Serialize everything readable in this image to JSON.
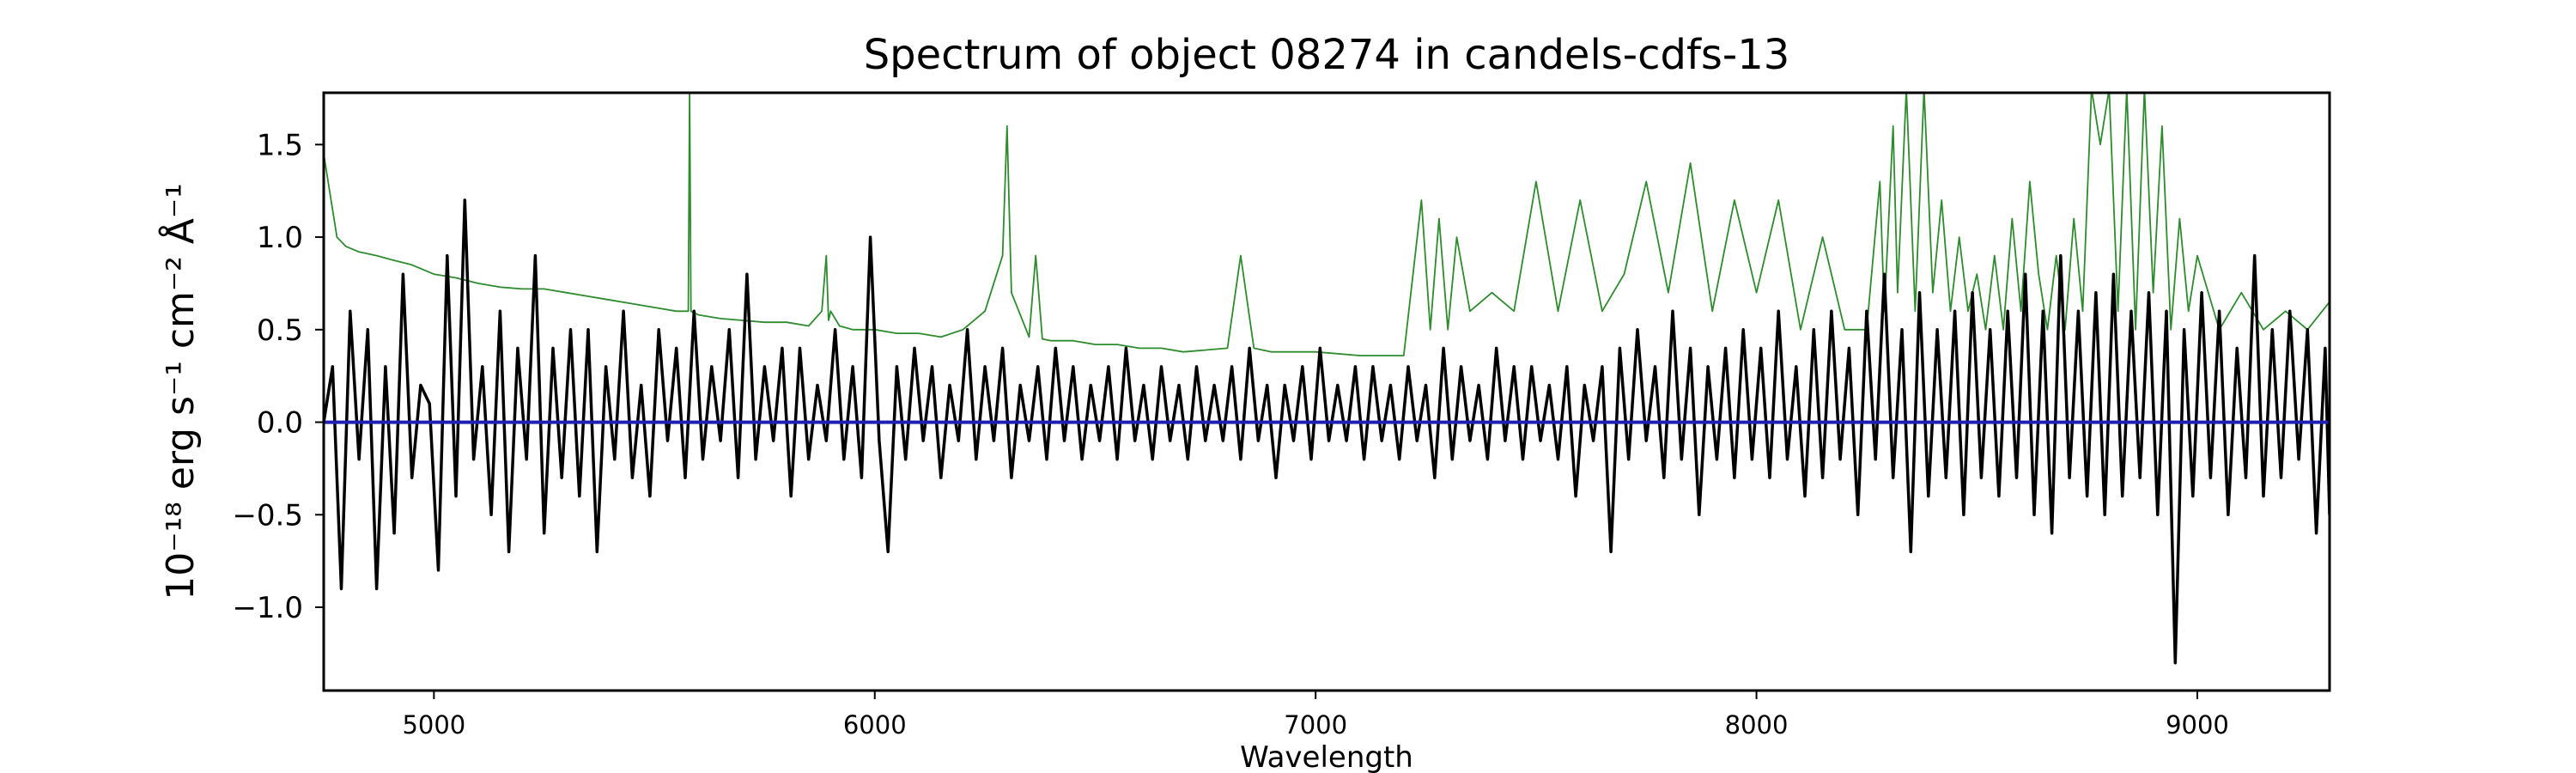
{
  "chart_data": {
    "type": "line",
    "title": "Spectrum of object 08274 in candels-cdfs-13",
    "xlabel": "Wavelength",
    "ylabel": "10⁻¹⁸ erg s⁻¹ cm⁻² Å⁻¹",
    "xlim": [
      4750,
      9300
    ],
    "ylim": [
      -1.45,
      1.78
    ],
    "xticks": [
      5000,
      6000,
      7000,
      8000,
      9000
    ],
    "xtick_labels": [
      "5000",
      "6000",
      "7000",
      "8000",
      "9000"
    ],
    "yticks": [
      1.5,
      1.0,
      0.5,
      0.0,
      -0.5,
      -1.0
    ],
    "ytick_labels": [
      "1.5",
      "1.0",
      "0.5",
      "0.0",
      "−0.5",
      "−1.0"
    ],
    "grid": false,
    "series": [
      {
        "color": "#000000",
        "x": [
          4750,
          4770,
          4790,
          4810,
          4830,
          4850,
          4870,
          4890,
          4910,
          4930,
          4950,
          4970,
          4990,
          5010,
          5030,
          5050,
          5070,
          5090,
          5110,
          5130,
          5150,
          5170,
          5190,
          5210,
          5230,
          5250,
          5270,
          5290,
          5310,
          5330,
          5350,
          5370,
          5390,
          5410,
          5430,
          5450,
          5470,
          5490,
          5510,
          5530,
          5550,
          5570,
          5590,
          5610,
          5630,
          5650,
          5670,
          5690,
          5710,
          5730,
          5750,
          5770,
          5790,
          5810,
          5830,
          5850,
          5870,
          5890,
          5910,
          5930,
          5950,
          5970,
          5990,
          6010,
          6030,
          6050,
          6070,
          6090,
          6110,
          6130,
          6150,
          6170,
          6190,
          6210,
          6230,
          6250,
          6270,
          6290,
          6310,
          6330,
          6350,
          6370,
          6390,
          6410,
          6430,
          6450,
          6470,
          6490,
          6510,
          6530,
          6550,
          6570,
          6590,
          6610,
          6630,
          6650,
          6670,
          6690,
          6710,
          6730,
          6750,
          6770,
          6790,
          6810,
          6830,
          6850,
          6870,
          6890,
          6910,
          6930,
          6950,
          6970,
          6990,
          7010,
          7030,
          7050,
          7070,
          7090,
          7110,
          7130,
          7150,
          7170,
          7190,
          7210,
          7230,
          7250,
          7270,
          7290,
          7310,
          7330,
          7350,
          7370,
          7390,
          7410,
          7430,
          7450,
          7470,
          7490,
          7510,
          7530,
          7550,
          7570,
          7590,
          7610,
          7630,
          7650,
          7670,
          7690,
          7710,
          7730,
          7750,
          7770,
          7790,
          7810,
          7830,
          7850,
          7870,
          7890,
          7910,
          7930,
          7950,
          7970,
          7990,
          8010,
          8030,
          8050,
          8070,
          8090,
          8110,
          8130,
          8150,
          8170,
          8190,
          8210,
          8230,
          8250,
          8270,
          8290,
          8310,
          8330,
          8350,
          8370,
          8390,
          8410,
          8430,
          8450,
          8470,
          8490,
          8510,
          8530,
          8550,
          8570,
          8590,
          8610,
          8630,
          8650,
          8670,
          8690,
          8710,
          8730,
          8750,
          8770,
          8790,
          8810,
          8830,
          8850,
          8870,
          8890,
          8910,
          8930,
          8950,
          8970,
          8990,
          9010,
          9030,
          9050,
          9070,
          9090,
          9110,
          9130,
          9150,
          9170,
          9190,
          9210,
          9230,
          9250,
          9270,
          9290,
          9300
        ],
        "y": [
          0.0,
          0.3,
          -0.9,
          0.6,
          -0.2,
          0.5,
          -0.9,
          0.3,
          -0.6,
          0.8,
          -0.3,
          0.2,
          0.1,
          -0.8,
          0.9,
          -0.4,
          1.2,
          -0.2,
          0.3,
          -0.5,
          0.6,
          -0.7,
          0.4,
          -0.2,
          0.9,
          -0.6,
          0.4,
          -0.3,
          0.5,
          -0.4,
          0.5,
          -0.7,
          0.3,
          -0.2,
          0.6,
          -0.3,
          0.2,
          -0.4,
          0.5,
          -0.1,
          0.4,
          -0.3,
          0.6,
          -0.2,
          0.3,
          -0.1,
          0.5,
          -0.3,
          0.8,
          -0.2,
          0.3,
          -0.1,
          0.4,
          -0.4,
          0.4,
          -0.2,
          0.2,
          -0.1,
          0.5,
          -0.2,
          0.3,
          -0.3,
          1.0,
          -0.1,
          -0.7,
          0.3,
          -0.2,
          0.4,
          -0.1,
          0.3,
          -0.3,
          0.2,
          -0.1,
          0.5,
          -0.2,
          0.3,
          -0.1,
          0.4,
          -0.3,
          0.2,
          -0.1,
          0.3,
          -0.2,
          0.4,
          -0.1,
          0.3,
          -0.2,
          0.2,
          -0.1,
          0.3,
          -0.2,
          0.4,
          -0.1,
          0.2,
          -0.2,
          0.3,
          -0.1,
          0.2,
          -0.2,
          0.3,
          -0.1,
          0.2,
          -0.1,
          0.3,
          -0.2,
          0.4,
          -0.1,
          0.2,
          -0.3,
          0.2,
          -0.1,
          0.3,
          -0.2,
          0.4,
          -0.1,
          0.2,
          -0.1,
          0.3,
          -0.2,
          0.3,
          -0.1,
          0.2,
          -0.2,
          0.3,
          -0.1,
          0.2,
          -0.3,
          0.4,
          -0.2,
          0.3,
          -0.1,
          0.2,
          -0.2,
          0.4,
          -0.1,
          0.3,
          -0.2,
          0.3,
          -0.1,
          0.2,
          -0.2,
          0.3,
          -0.4,
          0.2,
          -0.1,
          0.3,
          -0.7,
          0.4,
          -0.2,
          0.5,
          -0.1,
          0.3,
          -0.3,
          0.6,
          -0.2,
          0.4,
          -0.5,
          0.3,
          -0.2,
          0.4,
          -0.3,
          0.5,
          -0.2,
          0.4,
          -0.3,
          0.6,
          -0.2,
          0.3,
          -0.4,
          0.5,
          -0.3,
          0.6,
          -0.2,
          0.4,
          -0.5,
          0.6,
          -0.2,
          0.8,
          -0.3,
          0.5,
          -0.7,
          0.7,
          -0.4,
          0.5,
          -0.3,
          0.6,
          -0.5,
          0.7,
          -0.3,
          0.5,
          -0.4,
          0.6,
          -0.3,
          0.8,
          -0.5,
          0.6,
          -0.6,
          0.9,
          -0.3,
          0.6,
          -0.4,
          0.7,
          -0.5,
          0.8,
          -0.4,
          0.6,
          -0.3,
          0.7,
          -0.5,
          0.6,
          -1.3,
          0.5,
          -0.4,
          0.7,
          -0.3,
          0.6,
          -0.5,
          0.4,
          -0.3,
          0.9,
          -0.4,
          0.5,
          -0.3,
          0.6,
          -0.2,
          0.5,
          -0.6,
          0.4,
          -0.5
        ]
      },
      {
        "color": "#2e8b2e",
        "x": [
          4750,
          4760,
          4780,
          4800,
          4830,
          4870,
          4900,
          4950,
          5000,
          5050,
          5100,
          5150,
          5200,
          5250,
          5300,
          5350,
          5400,
          5450,
          5500,
          5550,
          5577,
          5580,
          5583,
          5600,
          5650,
          5700,
          5750,
          5800,
          5850,
          5880,
          5890,
          5895,
          5900,
          5920,
          5950,
          6000,
          6050,
          6100,
          6150,
          6200,
          6250,
          6290,
          6300,
          6310,
          6350,
          6365,
          6380,
          6400,
          6450,
          6500,
          6550,
          6600,
          6650,
          6700,
          6800,
          6830,
          6860,
          6900,
          6950,
          7000,
          7100,
          7200,
          7240,
          7260,
          7280,
          7300,
          7320,
          7350,
          7400,
          7450,
          7500,
          7550,
          7600,
          7650,
          7700,
          7750,
          7800,
          7850,
          7900,
          7950,
          8000,
          8050,
          8100,
          8150,
          8200,
          8250,
          8280,
          8290,
          8310,
          8320,
          8340,
          8360,
          8380,
          8400,
          8420,
          8440,
          8460,
          8480,
          8500,
          8520,
          8540,
          8560,
          8580,
          8600,
          8620,
          8640,
          8660,
          8680,
          8700,
          8720,
          8740,
          8760,
          8780,
          8800,
          8820,
          8840,
          8860,
          8880,
          8900,
          8920,
          8940,
          8960,
          8980,
          9000,
          9050,
          9100,
          9150,
          9200,
          9250,
          9300
        ],
        "y": [
          1.45,
          1.3,
          1.0,
          0.95,
          0.92,
          0.9,
          0.88,
          0.85,
          0.8,
          0.78,
          0.75,
          0.73,
          0.72,
          0.72,
          0.7,
          0.68,
          0.66,
          0.64,
          0.62,
          0.6,
          0.6,
          1.8,
          0.6,
          0.58,
          0.56,
          0.55,
          0.54,
          0.54,
          0.52,
          0.6,
          0.9,
          0.55,
          0.6,
          0.52,
          0.5,
          0.5,
          0.48,
          0.48,
          0.46,
          0.5,
          0.6,
          0.9,
          1.6,
          0.7,
          0.46,
          0.9,
          0.45,
          0.44,
          0.44,
          0.42,
          0.42,
          0.4,
          0.4,
          0.38,
          0.4,
          0.9,
          0.4,
          0.38,
          0.38,
          0.38,
          0.36,
          0.36,
          1.2,
          0.5,
          1.1,
          0.5,
          1.0,
          0.6,
          0.7,
          0.6,
          1.3,
          0.6,
          1.2,
          0.6,
          0.8,
          1.3,
          0.7,
          1.4,
          0.6,
          1.2,
          0.7,
          1.2,
          0.5,
          1.0,
          0.5,
          0.5,
          1.3,
          0.6,
          1.6,
          0.7,
          1.8,
          0.6,
          1.8,
          0.7,
          1.2,
          0.6,
          1.0,
          0.6,
          0.8,
          0.5,
          0.9,
          0.5,
          1.1,
          0.6,
          1.3,
          0.8,
          0.5,
          0.9,
          0.5,
          1.1,
          0.6,
          1.8,
          1.5,
          1.8,
          0.6,
          1.8,
          0.5,
          1.8,
          0.7,
          1.6,
          0.5,
          1.1,
          0.6,
          0.9,
          0.5,
          0.7,
          0.5,
          0.6,
          0.5,
          0.65
        ]
      },
      {
        "color": "#1f1fb4",
        "x": [
          4750,
          9300
        ],
        "y": [
          0.0,
          0.0
        ]
      }
    ]
  }
}
